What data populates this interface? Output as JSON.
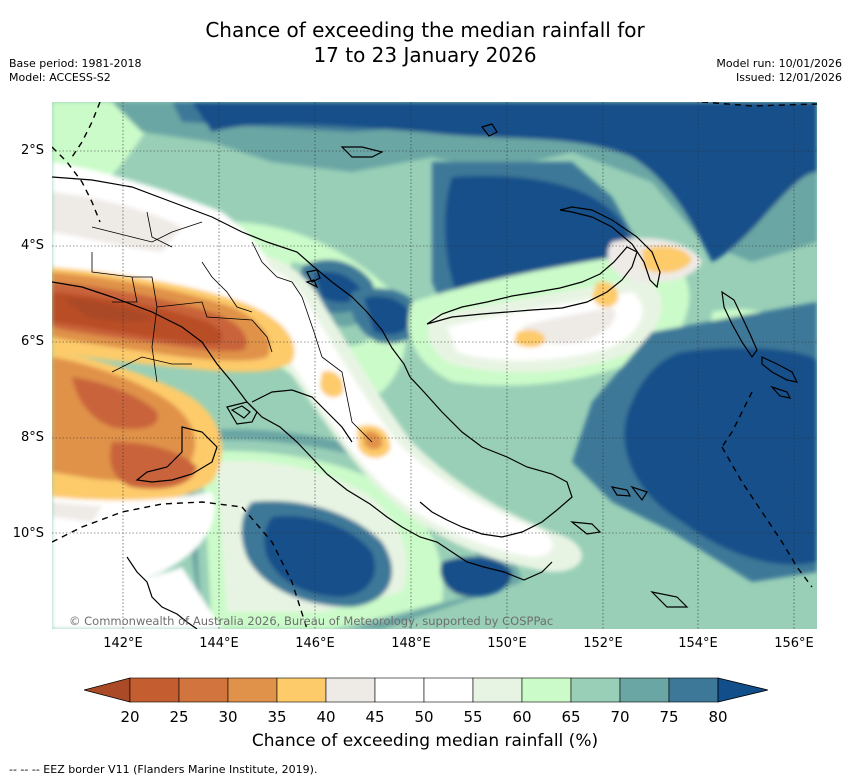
{
  "title": {
    "line1": "Chance of exceeding the median rainfall for",
    "line2": "17 to 23 January 2026"
  },
  "meta": {
    "base_period": "Base period: 1981-2018",
    "model": "Model: ACCESS-S2",
    "model_run": "Model run: 10/01/2026",
    "issued": "Issued: 12/01/2026"
  },
  "map": {
    "lon_labels": [
      "142°E",
      "144°E",
      "146°E",
      "148°E",
      "150°E",
      "152°E",
      "154°E",
      "156°E"
    ],
    "lat_labels": [
      "2°S",
      "4°S",
      "6°S",
      "8°S",
      "10°S"
    ],
    "copyright": "© Commonwealth of Australia 2026, Bureau of Meteorology, supported by COSPPac",
    "colors": {
      "c20": "#aa4a26",
      "c25": "#b94d27",
      "c30": "#c9643a",
      "c35": "#e0924a",
      "c40": "#fdcb6a",
      "c45": "#eeeae6",
      "c50": "#ffffff",
      "c55": "#ffffff",
      "c60": "#e8f4e3",
      "c65": "#cbfbc9",
      "c70": "#99cfb7",
      "c75": "#6aa6a4",
      "c80": "#3e7898",
      "c85": "#124f8a"
    }
  },
  "colorbar": {
    "labels": [
      "20",
      "25",
      "30",
      "35",
      "40",
      "45",
      "50",
      "55",
      "60",
      "65",
      "70",
      "75",
      "80"
    ],
    "colors": [
      "#c45e30",
      "#d2743d",
      "#e0924a",
      "#fdcb6a",
      "#eeeae6",
      "#ffffff",
      "#ffffff",
      "#e8f4e3",
      "#cbfbc9",
      "#99cfb7",
      "#6aa6a4",
      "#3e7898"
    ],
    "low_color": "#aa4a26",
    "high_color": "#124f8a",
    "title": "Chance of exceeding median rainfall (%)"
  },
  "footnote": "-- --  -- EEZ border V11 (Flanders Marine Institute, 2019)."
}
